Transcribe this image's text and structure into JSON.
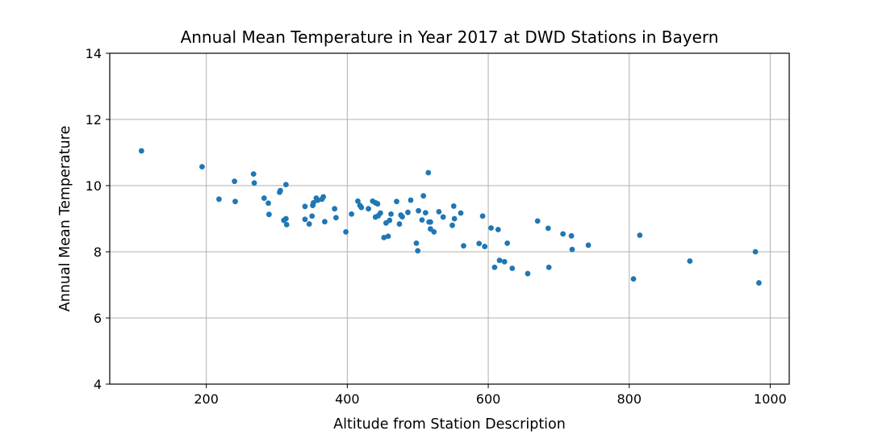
{
  "chart_data": {
    "type": "scatter",
    "title": "Annual Mean Temperature in Year 2017 at DWD Stations in Bayern",
    "xlabel": "Altitude from Station Description",
    "ylabel": "Annual Mean Temperature",
    "xlim": [
      63,
      1027
    ],
    "ylim": [
      4,
      14
    ],
    "xticks": [
      200,
      400,
      600,
      800,
      1000
    ],
    "yticks": [
      4,
      6,
      8,
      10,
      12,
      14
    ],
    "grid": true,
    "marker_color": "#1f77b4",
    "points": [
      [
        108,
        11.05
      ],
      [
        194,
        10.57
      ],
      [
        218,
        9.59
      ],
      [
        240,
        10.13
      ],
      [
        241,
        9.52
      ],
      [
        267,
        10.35
      ],
      [
        268,
        10.08
      ],
      [
        282,
        9.62
      ],
      [
        288,
        9.47
      ],
      [
        289,
        9.13
      ],
      [
        304,
        9.8
      ],
      [
        305,
        9.85
      ],
      [
        310,
        8.95
      ],
      [
        313,
        9.0
      ],
      [
        313,
        10.03
      ],
      [
        314,
        8.82
      ],
      [
        340,
        9.37
      ],
      [
        340,
        8.98
      ],
      [
        346,
        8.84
      ],
      [
        350,
        9.08
      ],
      [
        351,
        9.4
      ],
      [
        352,
        9.48
      ],
      [
        356,
        9.62
      ],
      [
        358,
        9.56
      ],
      [
        364,
        9.59
      ],
      [
        366,
        9.66
      ],
      [
        368,
        8.91
      ],
      [
        382,
        9.3
      ],
      [
        384,
        9.03
      ],
      [
        398,
        8.6
      ],
      [
        406,
        9.14
      ],
      [
        415,
        9.53
      ],
      [
        418,
        9.4
      ],
      [
        420,
        9.34
      ],
      [
        430,
        9.3
      ],
      [
        436,
        9.53
      ],
      [
        440,
        9.48
      ],
      [
        440,
        9.05
      ],
      [
        443,
        9.45
      ],
      [
        444,
        9.09
      ],
      [
        447,
        9.17
      ],
      [
        452,
        8.43
      ],
      [
        455,
        8.87
      ],
      [
        458,
        8.47
      ],
      [
        460,
        8.95
      ],
      [
        462,
        9.14
      ],
      [
        470,
        9.52
      ],
      [
        474,
        8.84
      ],
      [
        476,
        9.11
      ],
      [
        478,
        9.06
      ],
      [
        486,
        9.19
      ],
      [
        490,
        9.56
      ],
      [
        498,
        8.26
      ],
      [
        501,
        9.24
      ],
      [
        500,
        8.03
      ],
      [
        506,
        8.96
      ],
      [
        508,
        9.69
      ],
      [
        511,
        9.18
      ],
      [
        515,
        10.39
      ],
      [
        516,
        8.9
      ],
      [
        518,
        8.9
      ],
      [
        518,
        8.69
      ],
      [
        523,
        8.6
      ],
      [
        530,
        9.21
      ],
      [
        536,
        9.05
      ],
      [
        549,
        8.8
      ],
      [
        551,
        9.38
      ],
      [
        552,
        9.0
      ],
      [
        561,
        9.17
      ],
      [
        565,
        8.18
      ],
      [
        587,
        8.25
      ],
      [
        592,
        9.08
      ],
      [
        595,
        8.16
      ],
      [
        604,
        8.72
      ],
      [
        609,
        7.53
      ],
      [
        614,
        8.67
      ],
      [
        616,
        7.74
      ],
      [
        623,
        7.7
      ],
      [
        627,
        8.26
      ],
      [
        634,
        7.5
      ],
      [
        656,
        7.34
      ],
      [
        670,
        8.93
      ],
      [
        685,
        8.71
      ],
      [
        686,
        7.53
      ],
      [
        706,
        8.54
      ],
      [
        718,
        8.48
      ],
      [
        719,
        8.07
      ],
      [
        742,
        8.2
      ],
      [
        806,
        7.18
      ],
      [
        815,
        8.5
      ],
      [
        886,
        7.72
      ],
      [
        979,
        8.0
      ],
      [
        984,
        7.06
      ]
    ]
  }
}
